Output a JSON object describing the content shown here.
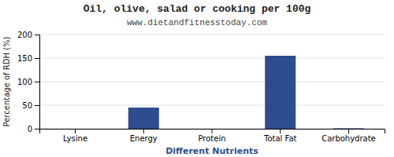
{
  "chart_data": {
    "type": "bar",
    "title": "Oil, olive, salad or cooking per 100g",
    "subtitle": "www.dietandfitnesstoday.com",
    "xlabel": "Different Nutrients",
    "ylabel": "Percentage of RDH (%)",
    "categories": [
      "Lysine",
      "Energy",
      "Protein",
      "Total Fat",
      "Carbohydrate"
    ],
    "values": [
      0,
      45,
      0,
      155,
      1
    ],
    "color": "#2e4d8e",
    "ylim": [
      0,
      200
    ],
    "yticks": [
      0,
      50,
      100,
      150,
      200
    ],
    "grid": true
  }
}
